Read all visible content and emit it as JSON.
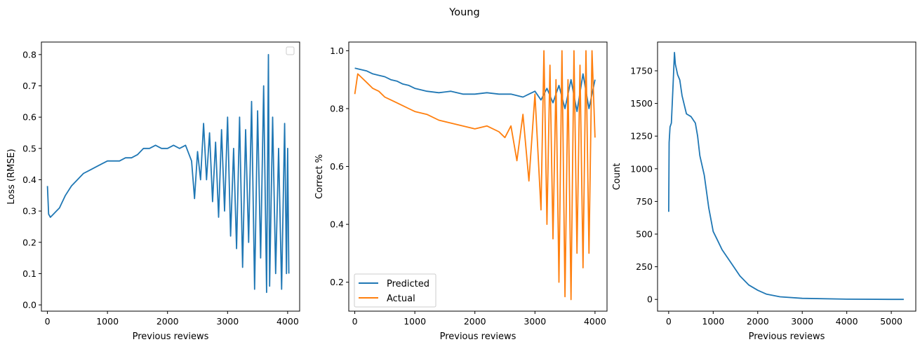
{
  "figure": {
    "suptitle": "Young"
  },
  "chart_data": [
    {
      "type": "line",
      "title": "",
      "xlabel": "Previous reviews",
      "ylabel": "Loss (RMSE)",
      "xlim": [
        -100,
        4200
      ],
      "ylim": [
        -0.02,
        0.84
      ],
      "xticks": [
        0,
        1000,
        2000,
        3000,
        4000
      ],
      "xtick_labels": [
        "0",
        "1000",
        "2000",
        "3000",
        "4000"
      ],
      "yticks": [
        0.0,
        0.1,
        0.2,
        0.3,
        0.4,
        0.5,
        0.6,
        0.7,
        0.8
      ],
      "ytick_labels": [
        "0.0",
        "0.1",
        "0.2",
        "0.3",
        "0.4",
        "0.5",
        "0.6",
        "0.7",
        "0.8"
      ],
      "legend": {
        "show": true,
        "position": "top-right",
        "entries": []
      },
      "series": [
        {
          "color": "#1f77b4",
          "x": [
            0,
            20,
            50,
            100,
            150,
            200,
            300,
            400,
            500,
            600,
            700,
            800,
            900,
            1000,
            1100,
            1200,
            1300,
            1400,
            1500,
            1600,
            1700,
            1800,
            1900,
            2000,
            2100,
            2200,
            2300,
            2400,
            2450,
            2500,
            2550,
            2600,
            2650,
            2700,
            2750,
            2800,
            2850,
            2900,
            2950,
            3000,
            3050,
            3100,
            3150,
            3200,
            3250,
            3300,
            3350,
            3400,
            3450,
            3500,
            3550,
            3600,
            3650,
            3680,
            3700,
            3750,
            3800,
            3850,
            3900,
            3950,
            3980,
            4000,
            4020
          ],
          "y": [
            0.38,
            0.29,
            0.28,
            0.29,
            0.3,
            0.31,
            0.35,
            0.38,
            0.4,
            0.42,
            0.43,
            0.44,
            0.45,
            0.46,
            0.46,
            0.46,
            0.47,
            0.47,
            0.48,
            0.5,
            0.5,
            0.51,
            0.5,
            0.5,
            0.51,
            0.5,
            0.51,
            0.46,
            0.34,
            0.49,
            0.4,
            0.58,
            0.4,
            0.55,
            0.33,
            0.52,
            0.28,
            0.56,
            0.3,
            0.6,
            0.22,
            0.5,
            0.18,
            0.6,
            0.12,
            0.56,
            0.2,
            0.65,
            0.05,
            0.62,
            0.15,
            0.7,
            0.04,
            0.8,
            0.06,
            0.6,
            0.1,
            0.5,
            0.05,
            0.58,
            0.1,
            0.5,
            0.1
          ]
        }
      ]
    },
    {
      "type": "line",
      "title": "",
      "xlabel": "Previous reviews",
      "ylabel": "Correct %",
      "xlim": [
        -100,
        4200
      ],
      "ylim": [
        0.1,
        1.03
      ],
      "xticks": [
        0,
        1000,
        2000,
        3000,
        4000
      ],
      "xtick_labels": [
        "0",
        "1000",
        "2000",
        "3000",
        "4000"
      ],
      "yticks": [
        0.2,
        0.4,
        0.6,
        0.8,
        1.0
      ],
      "ytick_labels": [
        "0.2",
        "0.4",
        "0.6",
        "0.8",
        "1.0"
      ],
      "legend": {
        "show": true,
        "position": "lower-left"
      },
      "series": [
        {
          "name": "Predicted",
          "color": "#1f77b4",
          "x": [
            0,
            100,
            200,
            300,
            400,
            500,
            600,
            700,
            800,
            900,
            1000,
            1200,
            1400,
            1600,
            1800,
            2000,
            2200,
            2400,
            2600,
            2800,
            2900,
            3000,
            3100,
            3200,
            3300,
            3400,
            3500,
            3600,
            3700,
            3800,
            3900,
            4000
          ],
          "y": [
            0.94,
            0.935,
            0.93,
            0.92,
            0.915,
            0.91,
            0.9,
            0.895,
            0.885,
            0.88,
            0.87,
            0.86,
            0.855,
            0.86,
            0.85,
            0.85,
            0.855,
            0.85,
            0.85,
            0.84,
            0.85,
            0.86,
            0.83,
            0.87,
            0.82,
            0.88,
            0.8,
            0.9,
            0.79,
            0.92,
            0.8,
            0.9
          ]
        },
        {
          "name": "Actual",
          "color": "#ff7f0e",
          "x": [
            0,
            50,
            100,
            200,
            300,
            400,
            500,
            600,
            700,
            800,
            900,
            1000,
            1200,
            1400,
            1600,
            1800,
            2000,
            2200,
            2400,
            2500,
            2600,
            2700,
            2800,
            2900,
            3000,
            3100,
            3150,
            3200,
            3250,
            3300,
            3350,
            3400,
            3450,
            3500,
            3550,
            3600,
            3650,
            3700,
            3750,
            3800,
            3850,
            3900,
            3950,
            4000
          ],
          "y": [
            0.85,
            0.92,
            0.91,
            0.89,
            0.87,
            0.86,
            0.84,
            0.83,
            0.82,
            0.81,
            0.8,
            0.79,
            0.78,
            0.76,
            0.75,
            0.74,
            0.73,
            0.74,
            0.72,
            0.7,
            0.74,
            0.62,
            0.78,
            0.55,
            0.85,
            0.45,
            1.0,
            0.4,
            0.95,
            0.35,
            0.9,
            0.2,
            1.0,
            0.15,
            0.9,
            0.14,
            1.0,
            0.3,
            0.95,
            0.25,
            1.0,
            0.3,
            1.0,
            0.7
          ]
        }
      ]
    },
    {
      "type": "line",
      "title": "",
      "xlabel": "Previous reviews",
      "ylabel": "Count",
      "xlim": [
        -250,
        5550
      ],
      "ylim": [
        -90,
        1970
      ],
      "xticks": [
        0,
        1000,
        2000,
        3000,
        4000,
        5000
      ],
      "xtick_labels": [
        "0",
        "1000",
        "2000",
        "3000",
        "4000",
        "5000"
      ],
      "yticks": [
        0,
        250,
        500,
        750,
        1000,
        1250,
        1500,
        1750
      ],
      "ytick_labels": [
        "0",
        "250",
        "500",
        "750",
        "1000",
        "1250",
        "1500",
        "1750"
      ],
      "legend": {
        "show": false
      },
      "series": [
        {
          "color": "#1f77b4",
          "x": [
            0,
            10,
            30,
            60,
            100,
            130,
            150,
            200,
            250,
            300,
            400,
            500,
            600,
            650,
            700,
            800,
            900,
            1000,
            1100,
            1200,
            1400,
            1600,
            1800,
            2000,
            2200,
            2500,
            3000,
            4000,
            5000,
            5280
          ],
          "y": [
            670,
            1200,
            1320,
            1350,
            1650,
            1890,
            1800,
            1720,
            1680,
            1560,
            1420,
            1400,
            1350,
            1250,
            1100,
            950,
            700,
            520,
            450,
            380,
            280,
            180,
            110,
            70,
            40,
            20,
            8,
            2,
            0,
            0
          ]
        }
      ]
    }
  ]
}
